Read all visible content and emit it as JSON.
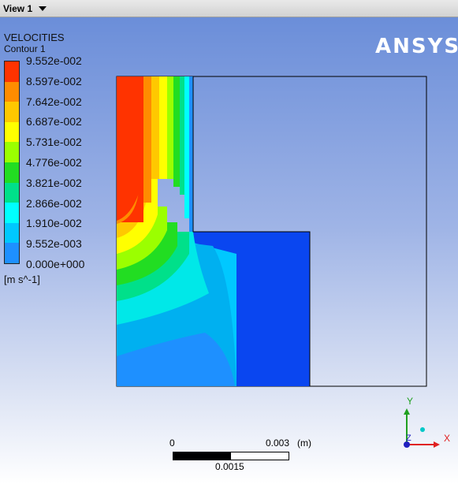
{
  "window": {
    "view_tab": "View 1"
  },
  "legend": {
    "title": "VELOCITIES",
    "subtitle": "Contour 1",
    "unit": "[m s^-1]",
    "labels": [
      "9.552e-002",
      "8.597e-002",
      "7.642e-002",
      "6.687e-002",
      "5.731e-002",
      "4.776e-002",
      "3.821e-002",
      "2.866e-002",
      "1.910e-002",
      "9.552e-003",
      "0.000e+000"
    ],
    "colors": [
      "#ff3300",
      "#ff8c00",
      "#ffc800",
      "#ffff00",
      "#9bff00",
      "#22dd22",
      "#00e08a",
      "#00ffff",
      "#00c8ff",
      "#1e90ff",
      "#0040ff"
    ]
  },
  "logo": "ANSYS",
  "scale_bar": {
    "left_label": "0",
    "right_label": "0.003",
    "unit": "(m)",
    "mid_label": "0.0015"
  },
  "axes": {
    "x": "X",
    "y": "Y",
    "z": "Z"
  },
  "colors": {
    "triad_x": "#e02020",
    "triad_y": "#20a020",
    "triad_z": "#2020c0"
  }
}
